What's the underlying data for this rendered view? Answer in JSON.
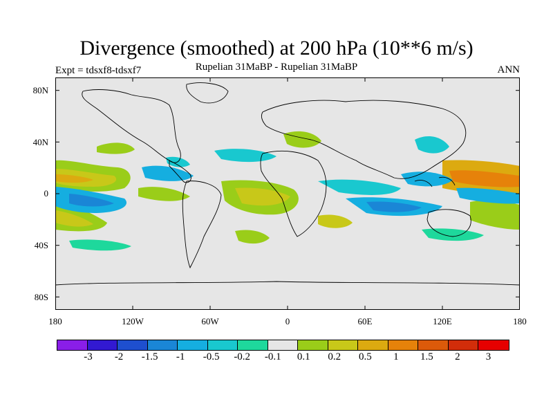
{
  "title": "Divergence (smoothed) at 200 hPa (10**6 m/s)",
  "subtitle": "Rupelian  31MaBP - Rupelian  31MaBP",
  "left_label": "Expt = tdsxf8-tdsxf7",
  "right_label": "ANN",
  "map": {
    "lat_labels": [
      "80N",
      "40N",
      "0",
      "40S",
      "80S"
    ],
    "lon_labels": [
      "180",
      "120W",
      "60W",
      "0",
      "60E",
      "120E",
      "180"
    ],
    "projection": "cylindrical equidistant",
    "background_color": "#e6e6e6"
  },
  "colorbar": {
    "labels": [
      "-3",
      "-2",
      "-1.5",
      "-1",
      "-0.5",
      "-0.2",
      "-0.1",
      "0.1",
      "0.2",
      "0.5",
      "1",
      "1.5",
      "2",
      "3"
    ],
    "colors": [
      "#8a1ee8",
      "#3219d2",
      "#1e4fcf",
      "#1a86d6",
      "#15aee0",
      "#19c8cf",
      "#1ed89c",
      "#e6e6e6",
      "#9acd19",
      "#c8c819",
      "#dcaa10",
      "#e6820a",
      "#dc5a0a",
      "#d22d0a",
      "#e60000"
    ]
  },
  "fields": {
    "positive_regions": [
      "Eastern tropical Pacific near equator",
      "Central Atlantic south of equator",
      "West Pacific warm pool near equator",
      "Subtropical South Pacific",
      "Mediterranean / Europe"
    ],
    "negative_regions": [
      "Tropical North Pacific band",
      "Central America / Caribbean",
      "Tropical Indian Ocean",
      "Southern Indian Ocean",
      "Northwest Pacific off East Asia"
    ]
  }
}
